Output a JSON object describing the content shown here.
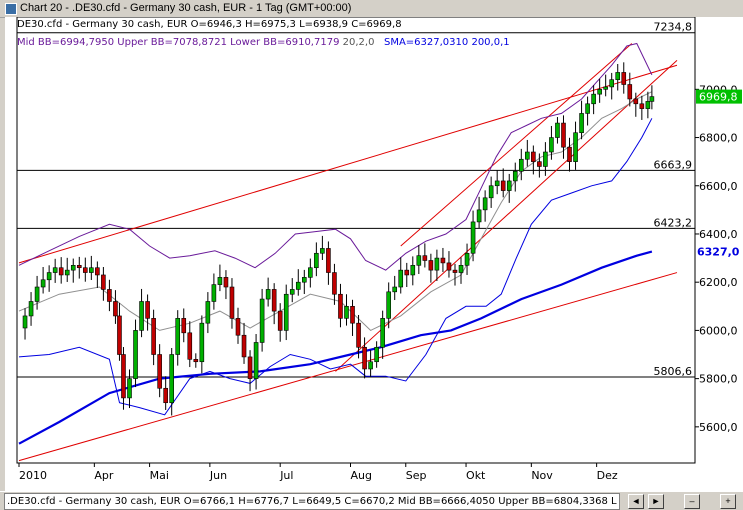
{
  "window": {
    "title": "Chart 20 - .DE30.cfd - Germany 30 cash, EUR - 1 Tag (GMT+00:00)",
    "minimize_icon": "minimize-icon",
    "close_icon": "close-icon"
  },
  "header": {
    "line1": "DE30.cfd - Germany 30 cash, EUR O=6946,3 H=6975,3 L=6938,9 C=6969,8",
    "mid_bb": "Mid BB=6994,7950",
    "upper_bb": "Upper BB=7078,8721",
    "lower_bb": "Lower BB=6910,7179",
    "bb_params": "20,2,0",
    "sma": "SMA=6327,0310",
    "sma_params": "200,0,1"
  },
  "colors": {
    "background": "#ffffff",
    "frame": "#d4d0c8",
    "candle_up": "#00b000",
    "candle_down": "#c00000",
    "bollinger": "#6a1b9a",
    "sma": "#0000e0",
    "trendline": "#e00000",
    "level": "#000000",
    "last_price_label": "#00c000"
  },
  "chart_data": {
    "type": "candlestick",
    "instrument": ".DE30.cfd - Germany 30 cash, EUR",
    "timeframe": "1 Tag",
    "ylim": [
      5450,
      7300
    ],
    "y_ticks": [
      "7000,0",
      "6800,0",
      "6600,0",
      "6400,0",
      "6200,0",
      "6000,0",
      "5800,0",
      "5600,0"
    ],
    "y_tick_values": [
      7000,
      6800,
      6600,
      6400,
      6200,
      6000,
      5800,
      5600
    ],
    "x_ticks": [
      "2010",
      "Apr",
      "Mai",
      "Jun",
      "Jul",
      "Aug",
      "Sep",
      "Okt",
      "Nov",
      "Dez"
    ],
    "levels": [
      {
        "label": "7234,8",
        "value": 7234.8
      },
      {
        "label": "6663,9",
        "value": 6663.9
      },
      {
        "label": "6423,2",
        "value": 6423.2
      },
      {
        "label": "5806,6",
        "value": 5806.6
      }
    ],
    "last_price": {
      "label": "6969,8",
      "value": 6969.8
    },
    "sma_label": {
      "label": "6327,0",
      "value": 6327.0
    },
    "trendlines": [
      {
        "name": "upper channel",
        "p1": [
          0,
          6280
        ],
        "p2": [
          655,
          7100
        ]
      },
      {
        "name": "lower channel",
        "p1": [
          0,
          5460
        ],
        "p2": [
          655,
          6240
        ]
      },
      {
        "name": "rising support",
        "p1": [
          315,
          5830
        ],
        "p2": [
          655,
          7120
        ]
      },
      {
        "name": "rising resistance",
        "p1": [
          380,
          6350
        ],
        "p2": [
          610,
          7190
        ]
      }
    ],
    "sma_series": [
      [
        0,
        5530
      ],
      [
        40,
        5620
      ],
      [
        90,
        5740
      ],
      [
        140,
        5800
      ],
      [
        190,
        5820
      ],
      [
        240,
        5830
      ],
      [
        290,
        5860
      ],
      [
        330,
        5900
      ],
      [
        360,
        5930
      ],
      [
        400,
        5980
      ],
      [
        430,
        6000
      ],
      [
        460,
        6050
      ],
      [
        500,
        6130
      ],
      [
        540,
        6190
      ],
      [
        580,
        6260
      ],
      [
        615,
        6310
      ],
      [
        630,
        6327
      ]
    ],
    "upper_bb_series": [
      [
        0,
        6270
      ],
      [
        30,
        6330
      ],
      [
        60,
        6390
      ],
      [
        90,
        6440
      ],
      [
        110,
        6420
      ],
      [
        130,
        6350
      ],
      [
        150,
        6300
      ],
      [
        170,
        6310
      ],
      [
        195,
        6330
      ],
      [
        215,
        6300
      ],
      [
        235,
        6260
      ],
      [
        255,
        6320
      ],
      [
        275,
        6400
      ],
      [
        295,
        6410
      ],
      [
        315,
        6420
      ],
      [
        330,
        6380
      ],
      [
        345,
        6290
      ],
      [
        365,
        6250
      ],
      [
        385,
        6320
      ],
      [
        405,
        6370
      ],
      [
        425,
        6400
      ],
      [
        445,
        6460
      ],
      [
        460,
        6590
      ],
      [
        475,
        6720
      ],
      [
        490,
        6820
      ],
      [
        505,
        6850
      ],
      [
        520,
        6880
      ],
      [
        540,
        6900
      ],
      [
        560,
        6960
      ],
      [
        575,
        7030
      ],
      [
        590,
        7100
      ],
      [
        605,
        7180
      ],
      [
        615,
        7190
      ],
      [
        630,
        7060
      ]
    ],
    "lower_bb_series": [
      [
        0,
        5890
      ],
      [
        30,
        5900
      ],
      [
        60,
        5930
      ],
      [
        90,
        5880
      ],
      [
        100,
        5700
      ],
      [
        120,
        5680
      ],
      [
        145,
        5650
      ],
      [
        170,
        5800
      ],
      [
        190,
        5830
      ],
      [
        210,
        5800
      ],
      [
        230,
        5780
      ],
      [
        250,
        5850
      ],
      [
        270,
        5900
      ],
      [
        290,
        5880
      ],
      [
        310,
        5840
      ],
      [
        330,
        5860
      ],
      [
        345,
        5810
      ],
      [
        365,
        5810
      ],
      [
        385,
        5790
      ],
      [
        405,
        5900
      ],
      [
        425,
        6050
      ],
      [
        445,
        6100
      ],
      [
        465,
        6100
      ],
      [
        480,
        6150
      ],
      [
        495,
        6300
      ],
      [
        510,
        6440
      ],
      [
        530,
        6540
      ],
      [
        550,
        6570
      ],
      [
        570,
        6600
      ],
      [
        590,
        6620
      ],
      [
        605,
        6700
      ],
      [
        620,
        6800
      ],
      [
        630,
        6880
      ]
    ],
    "mid_bb_series": [
      [
        0,
        6080
      ],
      [
        40,
        6150
      ],
      [
        80,
        6180
      ],
      [
        110,
        6080
      ],
      [
        140,
        6000
      ],
      [
        170,
        6030
      ],
      [
        200,
        6080
      ],
      [
        230,
        6010
      ],
      [
        260,
        6080
      ],
      [
        290,
        6150
      ],
      [
        320,
        6120
      ],
      [
        350,
        6000
      ],
      [
        380,
        6060
      ],
      [
        410,
        6160
      ],
      [
        440,
        6230
      ],
      [
        460,
        6380
      ],
      [
        480,
        6530
      ],
      [
        500,
        6660
      ],
      [
        520,
        6720
      ],
      [
        540,
        6740
      ],
      [
        560,
        6800
      ],
      [
        580,
        6880
      ],
      [
        600,
        6920
      ],
      [
        615,
        6960
      ],
      [
        630,
        6990
      ]
    ],
    "close_series": [
      [
        0,
        6010
      ],
      [
        6,
        6060
      ],
      [
        12,
        6120
      ],
      [
        18,
        6180
      ],
      [
        24,
        6210
      ],
      [
        30,
        6240
      ],
      [
        36,
        6260
      ],
      [
        42,
        6230
      ],
      [
        48,
        6250
      ],
      [
        54,
        6270
      ],
      [
        60,
        6260
      ],
      [
        66,
        6240
      ],
      [
        72,
        6260
      ],
      [
        78,
        6230
      ],
      [
        84,
        6170
      ],
      [
        90,
        6120
      ],
      [
        96,
        6060
      ],
      [
        100,
        5900
      ],
      [
        104,
        5720
      ],
      [
        110,
        5800
      ],
      [
        116,
        6000
      ],
      [
        122,
        6120
      ],
      [
        128,
        6050
      ],
      [
        134,
        5900
      ],
      [
        140,
        5760
      ],
      [
        146,
        5700
      ],
      [
        152,
        5900
      ],
      [
        158,
        6050
      ],
      [
        164,
        5990
      ],
      [
        170,
        5880
      ],
      [
        176,
        5870
      ],
      [
        182,
        6030
      ],
      [
        188,
        6120
      ],
      [
        194,
        6190
      ],
      [
        200,
        6220
      ],
      [
        206,
        6180
      ],
      [
        212,
        6050
      ],
      [
        218,
        5980
      ],
      [
        224,
        5890
      ],
      [
        230,
        5800
      ],
      [
        236,
        5950
      ],
      [
        242,
        6130
      ],
      [
        248,
        6170
      ],
      [
        254,
        6080
      ],
      [
        260,
        6000
      ],
      [
        266,
        6150
      ],
      [
        272,
        6170
      ],
      [
        278,
        6200
      ],
      [
        284,
        6220
      ],
      [
        290,
        6260
      ],
      [
        296,
        6320
      ],
      [
        302,
        6340
      ],
      [
        308,
        6240
      ],
      [
        314,
        6150
      ],
      [
        320,
        6050
      ],
      [
        326,
        6100
      ],
      [
        332,
        6030
      ],
      [
        338,
        5930
      ],
      [
        344,
        5840
      ],
      [
        350,
        5870
      ],
      [
        356,
        5930
      ],
      [
        362,
        6050
      ],
      [
        368,
        6160
      ],
      [
        374,
        6180
      ],
      [
        380,
        6250
      ],
      [
        386,
        6230
      ],
      [
        392,
        6270
      ],
      [
        398,
        6310
      ],
      [
        404,
        6290
      ],
      [
        410,
        6250
      ],
      [
        416,
        6300
      ],
      [
        422,
        6280
      ],
      [
        428,
        6250
      ],
      [
        434,
        6240
      ],
      [
        440,
        6270
      ],
      [
        446,
        6320
      ],
      [
        452,
        6450
      ],
      [
        458,
        6500
      ],
      [
        464,
        6550
      ],
      [
        470,
        6600
      ],
      [
        476,
        6620
      ],
      [
        482,
        6580
      ],
      [
        488,
        6620
      ],
      [
        494,
        6660
      ],
      [
        500,
        6710
      ],
      [
        506,
        6740
      ],
      [
        512,
        6700
      ],
      [
        518,
        6680
      ],
      [
        524,
        6740
      ],
      [
        530,
        6800
      ],
      [
        536,
        6860
      ],
      [
        542,
        6760
      ],
      [
        548,
        6700
      ],
      [
        554,
        6820
      ],
      [
        560,
        6900
      ],
      [
        566,
        6940
      ],
      [
        572,
        6980
      ],
      [
        578,
        7000
      ],
      [
        584,
        7010
      ],
      [
        590,
        7040
      ],
      [
        596,
        7070
      ],
      [
        602,
        7020
      ],
      [
        608,
        6960
      ],
      [
        614,
        6940
      ],
      [
        620,
        6920
      ],
      [
        626,
        6950
      ],
      [
        630,
        6969.8
      ]
    ]
  },
  "status": {
    "text": ".DE30.cfd - Germany 30 cash, EUR O=6766,1 H=6776,7 L=6649,5 C=6670,2 Mid BB=6666,4050 Upper BB=6804,3368 L",
    "buttons": [
      "◄",
      "►",
      "–",
      "+"
    ]
  }
}
